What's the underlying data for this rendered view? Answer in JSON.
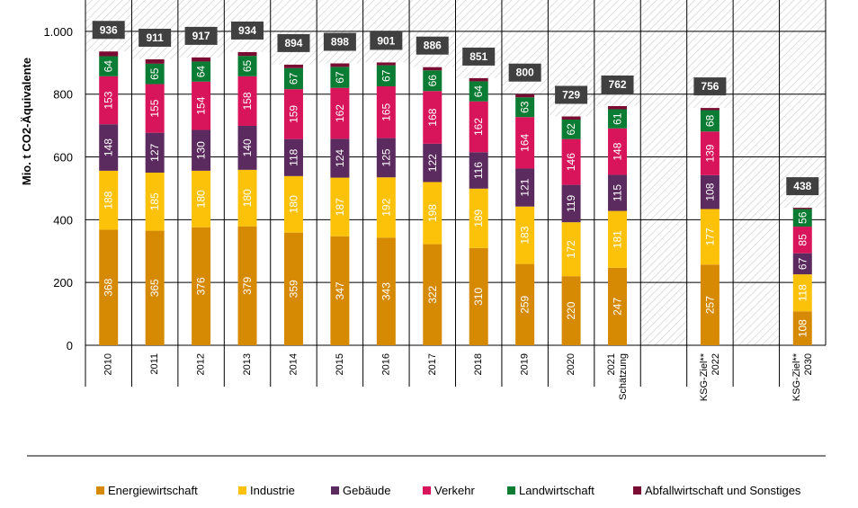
{
  "chart_data": {
    "type": "bar",
    "stacked": true,
    "ylabel": "Mio. t CO2-Äquivalente",
    "ylim": [
      0,
      1100
    ],
    "yticks": [
      0,
      200,
      400,
      600,
      800,
      1000
    ],
    "ytick_labels": [
      "0",
      "200",
      "400",
      "600",
      "800",
      "1.000"
    ],
    "grid": true,
    "legend_position": "bottom",
    "categories": [
      [
        "2010"
      ],
      [
        "2011"
      ],
      [
        "2012"
      ],
      [
        "2013"
      ],
      [
        "2014"
      ],
      [
        "2015"
      ],
      [
        "2016"
      ],
      [
        "2017"
      ],
      [
        "2018"
      ],
      [
        "2019"
      ],
      [
        "2020"
      ],
      [
        "2021",
        "Schätzung"
      ],
      [],
      [
        "KSG-Ziel**",
        "2022"
      ],
      [],
      [
        "KSG-Ziel**",
        "2030"
      ]
    ],
    "series": [
      {
        "name": "Energiewirtschaft",
        "color": "#d68a04",
        "values": [
          368,
          365,
          376,
          379,
          359,
          347,
          343,
          322,
          310,
          259,
          220,
          247,
          null,
          257,
          null,
          108
        ]
      },
      {
        "name": "Industrie",
        "color": "#fcc20a",
        "values": [
          188,
          185,
          180,
          180,
          180,
          187,
          192,
          198,
          189,
          183,
          172,
          181,
          null,
          177,
          null,
          118
        ]
      },
      {
        "name": "Gebäude",
        "color": "#5b2a5f",
        "values": [
          148,
          127,
          130,
          140,
          118,
          124,
          125,
          122,
          116,
          121,
          119,
          115,
          null,
          108,
          null,
          67
        ]
      },
      {
        "name": "Verkehr",
        "color": "#d8155a",
        "values": [
          153,
          155,
          154,
          158,
          159,
          162,
          165,
          168,
          162,
          164,
          146,
          148,
          null,
          139,
          null,
          85
        ]
      },
      {
        "name": "Landwirtschaft",
        "color": "#0b7c33",
        "values": [
          64,
          65,
          64,
          65,
          67,
          67,
          67,
          66,
          64,
          63,
          62,
          61,
          null,
          68,
          null,
          56
        ]
      },
      {
        "name": "Abfallwirtschaft und Sonstiges",
        "color": "#7a0c33",
        "values": [
          15,
          14,
          13,
          12,
          11,
          11,
          9,
          10,
          10,
          10,
          10,
          10,
          null,
          7,
          null,
          4
        ]
      }
    ],
    "totals": [
      936,
      911,
      917,
      934,
      894,
      898,
      901,
      886,
      851,
      800,
      729,
      762,
      null,
      756,
      null,
      438
    ],
    "shaded_region_above": [
      936,
      911,
      917,
      934,
      894,
      898,
      901,
      886,
      851,
      800,
      729,
      762,
      null,
      756,
      null,
      438
    ]
  }
}
